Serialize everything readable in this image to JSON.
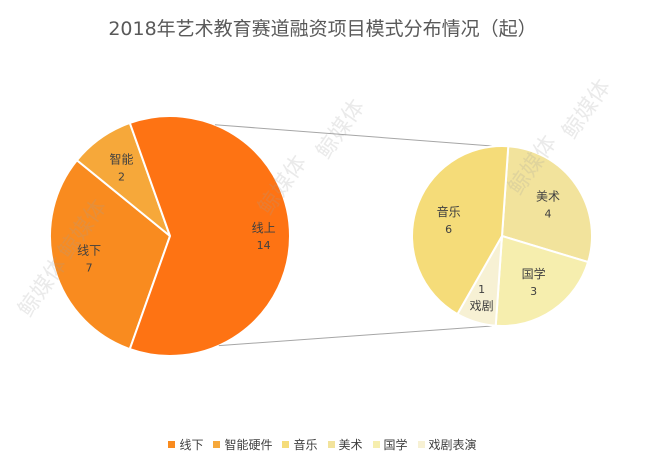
{
  "chart_data": {
    "type": "bar-of-pie",
    "title": "2018年艺术教育赛道融资项目模式分布情况（起）",
    "main_pie": [
      {
        "name": "线下",
        "label": "线下",
        "value": 7,
        "color": "#f98b1f"
      },
      {
        "name": "智能硬件",
        "label": "智能",
        "value": 2,
        "color": "#f6a83a"
      },
      {
        "name": "线上",
        "label": "线上",
        "value": 14,
        "color": "#fe7313"
      }
    ],
    "secondary_pie": [
      {
        "name": "音乐",
        "label": "音乐",
        "value": 6,
        "color": "#f5dc79"
      },
      {
        "name": "美术",
        "label": "美术",
        "value": 4,
        "color": "#f2e39c"
      },
      {
        "name": "国学",
        "label": "国学",
        "value": 3,
        "color": "#f6eeae"
      },
      {
        "name": "戏剧表演",
        "label": "戏剧",
        "value": 1,
        "color": "#f7f1d4"
      }
    ],
    "legend": [
      {
        "name": "线下",
        "color": "#f98b1f"
      },
      {
        "name": "智能硬件",
        "color": "#f6a83a"
      },
      {
        "name": "音乐",
        "color": "#f5dc79"
      },
      {
        "name": "美术",
        "color": "#f2e39c"
      },
      {
        "name": "国学",
        "color": "#f6eeae"
      },
      {
        "name": "戏剧表演",
        "color": "#f7f1d4"
      }
    ],
    "legend_position": "bottom",
    "watermark_text": "鲸媒体"
  }
}
